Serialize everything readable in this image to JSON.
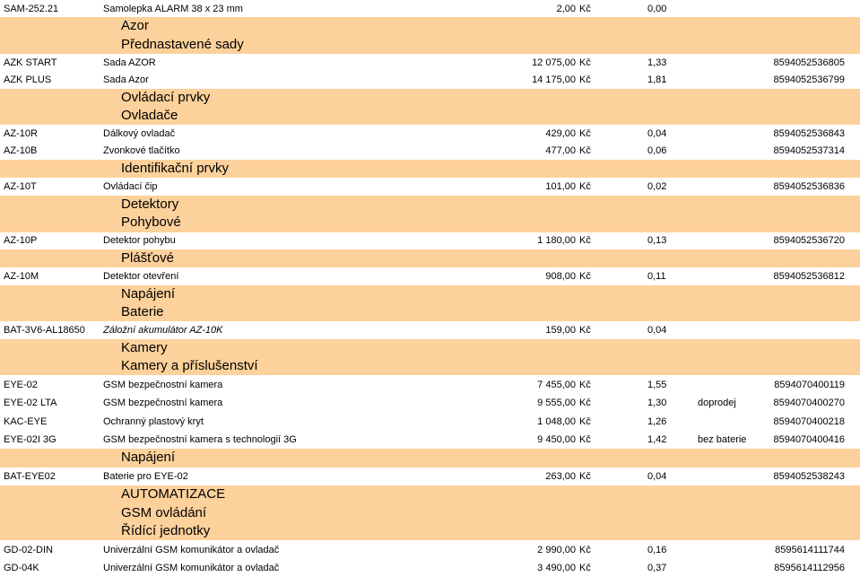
{
  "currency": "Kč",
  "rows": [
    {
      "type": "item",
      "code": "SAM-252.21",
      "name": "Samolepka ALARM 38 x 23 mm",
      "price": "2,00",
      "kc": "Kč",
      "weight": "0,00",
      "note": "",
      "ean": ""
    },
    {
      "type": "header",
      "text": "Azor"
    },
    {
      "type": "header",
      "text": "Přednastavené sady"
    },
    {
      "type": "item",
      "code": "AZK START",
      "name": "Sada AZOR",
      "price": "12 075,00",
      "kc": "Kč",
      "weight": "1,33",
      "note": "",
      "ean": "8594052536805"
    },
    {
      "type": "item",
      "code": "AZK PLUS",
      "name": "Sada Azor",
      "price": "14 175,00",
      "kc": "Kč",
      "weight": "1,81",
      "note": "",
      "ean": "8594052536799"
    },
    {
      "type": "header",
      "text": "Ovládací prvky"
    },
    {
      "type": "header",
      "text": "Ovladače"
    },
    {
      "type": "item",
      "code": "AZ-10R",
      "name": "Dálkový ovladač",
      "price": "429,00",
      "kc": "Kč",
      "weight": "0,04",
      "note": "",
      "ean": "8594052536843"
    },
    {
      "type": "item",
      "code": "AZ-10B",
      "name": "Zvonkové tlačítko",
      "price": "477,00",
      "kc": "Kč",
      "weight": "0,06",
      "note": "",
      "ean": "8594052537314"
    },
    {
      "type": "header",
      "text": "Identifikační prvky"
    },
    {
      "type": "item",
      "code": "AZ-10T",
      "name": "Ovládací čip",
      "price": "101,00",
      "kc": "Kč",
      "weight": "0,02",
      "note": "",
      "ean": "8594052536836"
    },
    {
      "type": "header",
      "text": "Detektory"
    },
    {
      "type": "header",
      "text": "Pohybové"
    },
    {
      "type": "item",
      "code": "AZ-10P",
      "name": "Detektor pohybu",
      "price": "1 180,00",
      "kc": "Kč",
      "weight": "0,13",
      "note": "",
      "ean": "8594052536720"
    },
    {
      "type": "header",
      "text": "Plášťové"
    },
    {
      "type": "item",
      "code": "AZ-10M",
      "name": "Detektor otevření",
      "price": "908,00",
      "kc": "Kč",
      "weight": "0,11",
      "note": "",
      "ean": "8594052536812"
    },
    {
      "type": "header",
      "text": "Napájení"
    },
    {
      "type": "header",
      "text": "Baterie"
    },
    {
      "type": "item",
      "code": "BAT-3V6-AL18650",
      "name": "Záložní akumulátor AZ-10K",
      "price": "159,00",
      "kc": "Kč",
      "weight": "0,04",
      "note": "",
      "ean": "",
      "italic": true
    },
    {
      "type": "header",
      "text": "Kamery"
    },
    {
      "type": "header",
      "text": "Kamery a příslušenství"
    },
    {
      "type": "item",
      "code": "EYE-02",
      "name": "GSM bezpečnostní kamera",
      "price": "7 455,00",
      "kc": "Kč",
      "weight": "1,55",
      "note": "",
      "ean": "8594070400119"
    },
    {
      "type": "item",
      "code": "EYE-02 LTA",
      "name": "GSM bezpečnostní kamera",
      "price": "9 555,00",
      "kc": "Kč",
      "weight": "1,30",
      "note": "doprodej",
      "ean": "8594070400270"
    },
    {
      "type": "item",
      "code": "KAC-EYE",
      "name": "Ochranný plastový kryt",
      "price": "1 048,00",
      "kc": "Kč",
      "weight": "1,26",
      "note": "",
      "ean": "8594070400218"
    },
    {
      "type": "item",
      "code": "EYE-02I 3G",
      "name": "GSM bezpečnostní kamera s technologií 3G",
      "price": "9 450,00",
      "kc": "Kč",
      "weight": "1,42",
      "note": "bez baterie",
      "ean": "8594070400416"
    },
    {
      "type": "header",
      "text": "Napájení"
    },
    {
      "type": "item",
      "code": "BAT-EYE02",
      "name": "Baterie pro EYE-02",
      "price": "263,00",
      "kc": "Kč",
      "weight": "0,04",
      "note": "",
      "ean": "8594052538243"
    },
    {
      "type": "header",
      "text": "AUTOMATIZACE"
    },
    {
      "type": "header",
      "text": "GSM ovládání"
    },
    {
      "type": "header",
      "text": "Řídící jednotky"
    },
    {
      "type": "item",
      "code": "GD-02-DIN",
      "name": "Univerzální GSM komunikátor a ovladač",
      "price": "2 990,00",
      "kc": "Kč",
      "weight": "0,16",
      "note": "",
      "ean": "8595614111744"
    },
    {
      "type": "item",
      "code": "GD-04K",
      "name": "Univerzální GSM komunikátor a ovladač",
      "price": "3 490,00",
      "kc": "Kč",
      "weight": "0,37",
      "note": "",
      "ean": "8595614112956"
    }
  ]
}
